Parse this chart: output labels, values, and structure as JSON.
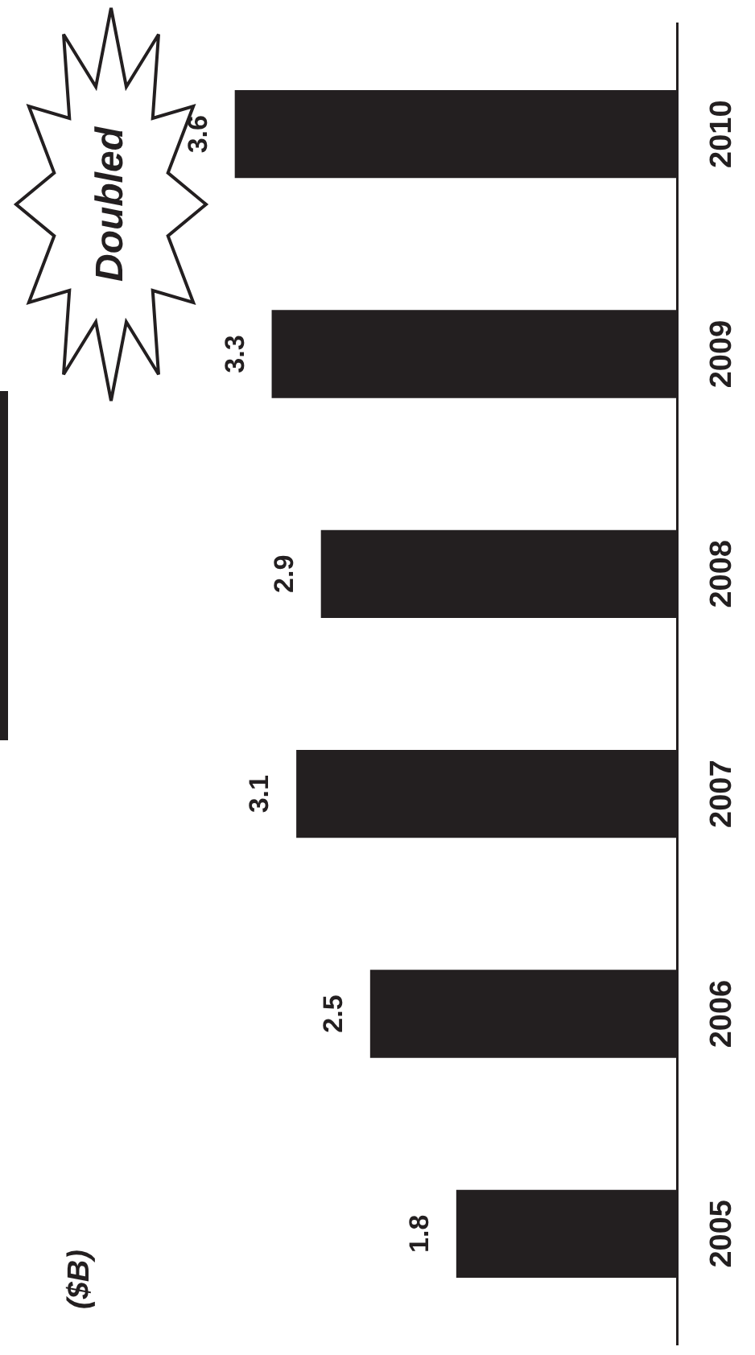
{
  "chart_data": {
    "type": "bar",
    "orientation": "horizontal",
    "ylabel": "($B)",
    "annotations": [
      "Doubled"
    ],
    "data_labels": true,
    "legend": false,
    "categories": [
      "2010",
      "2009",
      "2008",
      "2007",
      "2006",
      "2005"
    ],
    "values": [
      3.6,
      3.3,
      2.9,
      3.1,
      2.5,
      1.8
    ],
    "color": "#231f20"
  }
}
